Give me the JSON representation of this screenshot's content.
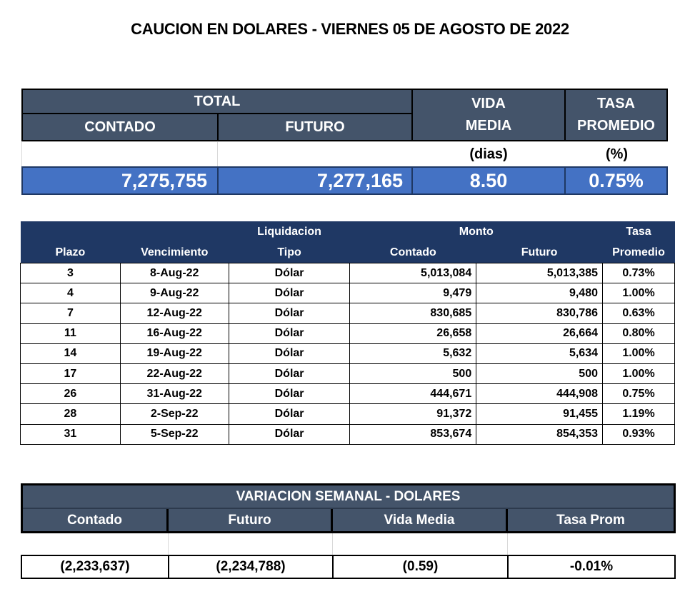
{
  "title": "CAUCION EN DOLARES - VIERNES  05 DE AGOSTO DE 2022",
  "summary": {
    "total_label": "TOTAL",
    "contado_label": "CONTADO",
    "futuro_label": "FUTURO",
    "vida_label_1": "VIDA",
    "vida_label_2": "MEDIA",
    "vida_unit": "(dias)",
    "tasa_label_1": "TASA",
    "tasa_label_2": "PROMEDIO",
    "tasa_unit": "(%)",
    "contado": "7,275,755",
    "futuro": "7,277,165",
    "vida_media": "8.50",
    "tasa_promedio": "0.75%"
  },
  "detail": {
    "headers": {
      "liquidacion": "Liquidacion",
      "monto": "Monto",
      "tasa": "Tasa",
      "plazo": "Plazo",
      "vencimiento": "Vencimiento",
      "tipo": "Tipo",
      "contado": "Contado",
      "futuro": "Futuro",
      "promedio": "Promedio"
    },
    "rows": [
      {
        "plazo": "3",
        "vencimiento": "8-Aug-22",
        "tipo": "Dólar",
        "contado": "5,013,084",
        "futuro": "5,013,385",
        "tasa": "0.73%"
      },
      {
        "plazo": "4",
        "vencimiento": "9-Aug-22",
        "tipo": "Dólar",
        "contado": "9,479",
        "futuro": "9,480",
        "tasa": "1.00%"
      },
      {
        "plazo": "7",
        "vencimiento": "12-Aug-22",
        "tipo": "Dólar",
        "contado": "830,685",
        "futuro": "830,786",
        "tasa": "0.63%"
      },
      {
        "plazo": "11",
        "vencimiento": "16-Aug-22",
        "tipo": "Dólar",
        "contado": "26,658",
        "futuro": "26,664",
        "tasa": "0.80%"
      },
      {
        "plazo": "14",
        "vencimiento": "19-Aug-22",
        "tipo": "Dólar",
        "contado": "5,632",
        "futuro": "5,634",
        "tasa": "1.00%"
      },
      {
        "plazo": "17",
        "vencimiento": "22-Aug-22",
        "tipo": "Dólar",
        "contado": "500",
        "futuro": "500",
        "tasa": "1.00%"
      },
      {
        "plazo": "26",
        "vencimiento": "31-Aug-22",
        "tipo": "Dólar",
        "contado": "444,671",
        "futuro": "444,908",
        "tasa": "0.75%"
      },
      {
        "plazo": "28",
        "vencimiento": "2-Sep-22",
        "tipo": "Dólar",
        "contado": "91,372",
        "futuro": "91,455",
        "tasa": "1.19%"
      },
      {
        "plazo": "31",
        "vencimiento": "5-Sep-22",
        "tipo": "Dólar",
        "contado": "853,674",
        "futuro": "854,353",
        "tasa": "0.93%"
      }
    ]
  },
  "weekly": {
    "title": "VARIACION SEMANAL - DOLARES",
    "headers": [
      "Contado",
      "Futuro",
      "Vida Media",
      "Tasa Prom"
    ],
    "values": [
      "(2,233,637)",
      "(2,234,788)",
      "(0.59)",
      "-0.01%"
    ]
  },
  "colors": {
    "header_slate": "#44546a",
    "header_navy": "#1f3864",
    "value_blue": "#4472c4"
  }
}
